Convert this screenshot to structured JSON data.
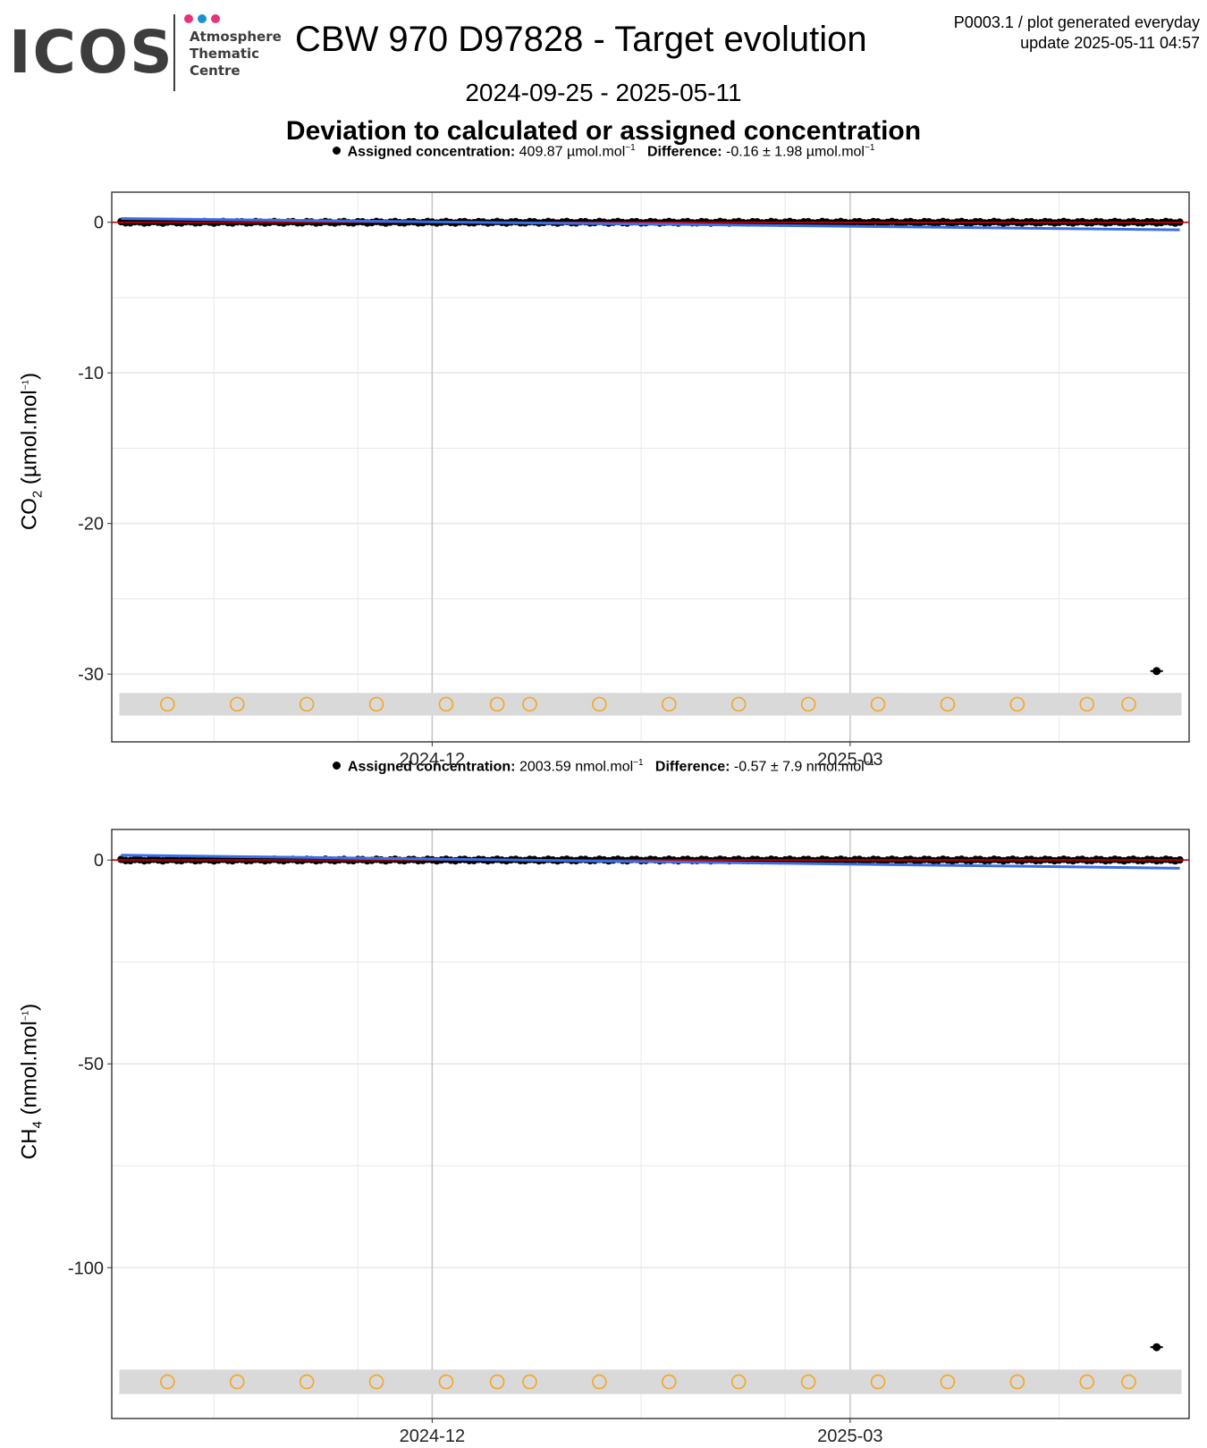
{
  "logo": {
    "wordmark": "ICOS",
    "line1": "Atmosphere",
    "line2": "Thematic",
    "line3": "Centre",
    "dot_colors": [
      "#e6337a",
      "#1b8ed6",
      "#e6337a"
    ]
  },
  "header": {
    "title": "CBW 970 D97828 - Target evolution",
    "info_line1": "P0003.1 / plot generated everyday",
    "info_line2": "update  2025-05-11 04:57",
    "date_range": "2024-09-25 - 2025-05-11",
    "plot_heading": "Deviation to calculated or assigned concentration"
  },
  "colors": {
    "points": "#000000",
    "zero_line": "#cc0000",
    "trend_line": "#3b6ee6",
    "open_circles": "#f5a623",
    "band": "#d9d9d9",
    "grid": "#e8e8e8",
    "grid_major": "#c8c8c8"
  },
  "chart_data": [
    {
      "type": "scatter",
      "gas": "CO2",
      "legend": {
        "assigned_label": "Assigned concentration:",
        "assigned_value": "409.87 µmol.mol",
        "difference_label": "Difference:",
        "difference_value": "-0.16 ± 1.98 µmol.mol"
      },
      "ylabel_main": "CO",
      "ylabel_sub": "2",
      "ylabel_unit": " (µmol.mol",
      "ylabel_end": ")",
      "ylim": [
        -34.5,
        2.0
      ],
      "yticks": [
        0,
        -10,
        -20,
        -30
      ],
      "ytick_labels": [
        "0",
        "-10",
        "-20",
        "-30"
      ],
      "xlim": [
        "2024-09-23",
        "2025-05-13"
      ],
      "xticks": [
        "2024-12-01",
        "2025-03-01"
      ],
      "xtick_labels": [
        "2024-12",
        "2025-03"
      ],
      "points_start": "2024-09-25",
      "points_end": "2025-05-11",
      "points_value": 0.0,
      "outlier": {
        "x": "2025-05-06",
        "y": -29.8
      },
      "trend": {
        "x": [
          "2024-09-25",
          "2025-05-11"
        ],
        "y": [
          0.25,
          -0.5
        ]
      },
      "band": {
        "y_center": -32.0,
        "y_half": 0.75
      },
      "open_circle_dates": [
        "2024-10-05",
        "2024-10-20",
        "2024-11-04",
        "2024-11-19",
        "2024-12-04",
        "2024-12-15",
        "2024-12-22",
        "2025-01-06",
        "2025-01-21",
        "2025-02-05",
        "2025-02-20",
        "2025-03-07",
        "2025-03-22",
        "2025-04-06",
        "2025-04-21",
        "2025-04-30"
      ]
    },
    {
      "type": "scatter",
      "gas": "CH4",
      "legend": {
        "assigned_label": "Assigned concentration:",
        "assigned_value": "2003.59 nmol.mol",
        "difference_label": "Difference:",
        "difference_value": "-0.57 ± 7.9 nmol.mol"
      },
      "ylabel_main": "CH",
      "ylabel_sub": "4",
      "ylabel_unit": " (nmol.mol",
      "ylabel_end": ")",
      "ylim": [
        -137,
        7.5
      ],
      "yticks": [
        0,
        -50,
        -100
      ],
      "ytick_labels": [
        "0",
        "-50",
        "-100"
      ],
      "xlim": [
        "2024-09-23",
        "2025-05-13"
      ],
      "xticks": [
        "2024-12-01",
        "2025-03-01"
      ],
      "xtick_labels": [
        "2024-12",
        "2025-03"
      ],
      "points_start": "2024-09-25",
      "points_end": "2025-05-11",
      "points_value": 0.0,
      "outlier": {
        "x": "2025-05-06",
        "y": -119.5
      },
      "trend": {
        "x": [
          "2024-09-25",
          "2025-05-11"
        ],
        "y": [
          1.2,
          -2.0
        ]
      },
      "band": {
        "y_center": -128.0,
        "y_half": 3.0
      },
      "open_circle_dates": [
        "2024-10-05",
        "2024-10-20",
        "2024-11-04",
        "2024-11-19",
        "2024-12-04",
        "2024-12-15",
        "2024-12-22",
        "2025-01-06",
        "2025-01-21",
        "2025-02-05",
        "2025-02-20",
        "2025-03-07",
        "2025-03-22",
        "2025-04-06",
        "2025-04-21",
        "2025-04-30"
      ]
    }
  ]
}
